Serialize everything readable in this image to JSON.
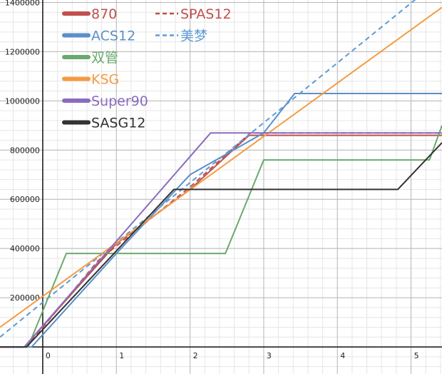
{
  "chart_data": {
    "type": "line",
    "xlim": [
      -0.58,
      5.42
    ],
    "ylim": [
      -110000,
      1410000
    ],
    "grid": true,
    "legend_placement": "top-left",
    "x_ticks": [
      "0",
      "1",
      "2",
      "3",
      "4",
      "5"
    ],
    "y_ticks": [
      "200000",
      "400000",
      "600000",
      "800000",
      "1000000",
      "1200000",
      "1400000"
    ],
    "series": [
      {
        "name": "870",
        "color": "#c0504d",
        "dash": false,
        "points": [
          [
            -0.58,
            0
          ],
          [
            -0.25,
            0
          ],
          [
            1.0,
            420000
          ],
          [
            2.0,
            640000
          ],
          [
            2.8,
            860000
          ],
          [
            5.42,
            860000
          ]
        ]
      },
      {
        "name": "SPAS12",
        "color": "#c0504d",
        "dash": true,
        "points": [
          [
            -0.58,
            0
          ],
          [
            -0.22,
            0
          ],
          [
            0.75,
            350000
          ],
          [
            2.0,
            650000
          ],
          [
            2.82,
            870000
          ],
          [
            5.42,
            870000
          ]
        ]
      },
      {
        "name": "ACS12",
        "color": "#5b8fc9",
        "dash": false,
        "points": [
          [
            -0.58,
            0
          ],
          [
            -0.15,
            0
          ],
          [
            1.0,
            380000
          ],
          [
            2.0,
            700000
          ],
          [
            3.0,
            870000
          ],
          [
            3.42,
            1030000
          ],
          [
            5.42,
            1030000
          ]
        ]
      },
      {
        "name": "美梦",
        "color": "#5b9bd5",
        "dash": true,
        "points": [
          [
            -0.58,
            40000
          ],
          [
            5.42,
            1500000
          ]
        ]
      },
      {
        "name": "双管",
        "color": "#6aa96e",
        "dash": false,
        "points": [
          [
            -0.58,
            0
          ],
          [
            -0.2,
            0
          ],
          [
            0.32,
            380000
          ],
          [
            2.48,
            380000
          ],
          [
            3.0,
            760000
          ],
          [
            5.25,
            760000
          ],
          [
            5.42,
            900000
          ]
        ]
      },
      {
        "name": "KSG",
        "color": "#f59b42",
        "dash": false,
        "points": [
          [
            -0.58,
            80000
          ],
          [
            5.42,
            1380000
          ]
        ]
      },
      {
        "name": "Super90",
        "color": "#8b6bbf",
        "dash": false,
        "points": [
          [
            -0.58,
            0
          ],
          [
            -0.25,
            0
          ],
          [
            2.28,
            870000
          ],
          [
            5.42,
            870000
          ]
        ]
      },
      {
        "name": "SASG12",
        "color": "#333333",
        "dash": false,
        "points": [
          [
            -0.58,
            0
          ],
          [
            -0.22,
            0
          ],
          [
            1.78,
            640000
          ],
          [
            4.82,
            640000
          ],
          [
            5.42,
            830000
          ]
        ]
      }
    ]
  }
}
